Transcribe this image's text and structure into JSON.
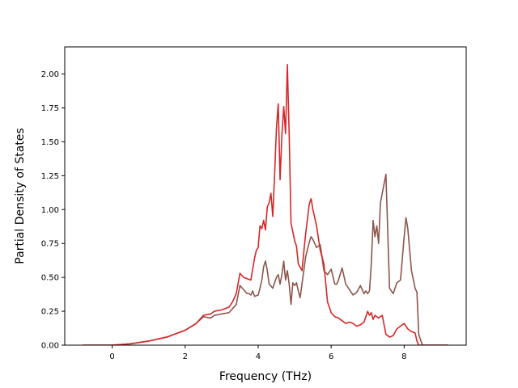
{
  "chart_data": {
    "type": "line",
    "title": "",
    "xlabel": "Frequency (THz)",
    "ylabel": "Partial Density of States",
    "xlim": [
      -1.3,
      9.7
    ],
    "ylim": [
      0,
      2.2
    ],
    "xticks": [
      0,
      2,
      4,
      6,
      8
    ],
    "xtick_labels": [
      "0",
      "2",
      "4",
      "6",
      "8"
    ],
    "yticks": [
      0,
      0.25,
      0.5,
      0.75,
      1.0,
      1.25,
      1.5,
      1.75,
      2.0
    ],
    "ytick_labels": [
      "0.00",
      "0.25",
      "0.50",
      "0.75",
      "1.00",
      "1.25",
      "1.50",
      "1.75",
      "2.00"
    ],
    "grid": false,
    "legend": "none",
    "series": [
      {
        "color": "#8c564b",
        "x": [
          -0.8,
          0.0,
          0.5,
          1.0,
          1.5,
          2.0,
          2.3,
          2.5,
          2.7,
          2.8,
          3.0,
          3.2,
          3.3,
          3.4,
          3.5,
          3.6,
          3.7,
          3.75,
          3.8,
          3.85,
          3.9,
          4.0,
          4.05,
          4.1,
          4.15,
          4.2,
          4.25,
          4.3,
          4.4,
          4.5,
          4.55,
          4.6,
          4.65,
          4.7,
          4.75,
          4.8,
          4.85,
          4.9,
          4.95,
          5.0,
          5.05,
          5.1,
          5.15,
          5.2,
          5.3,
          5.4,
          5.45,
          5.5,
          5.6,
          5.7,
          5.75,
          5.8,
          5.9,
          6.0,
          6.1,
          6.15,
          6.2,
          6.3,
          6.4,
          6.5,
          6.6,
          6.7,
          6.8,
          6.9,
          6.95,
          7.0,
          7.05,
          7.1,
          7.15,
          7.2,
          7.25,
          7.3,
          7.35,
          7.4,
          7.5,
          7.6,
          7.65,
          7.7,
          7.8,
          7.9,
          8.0,
          8.05,
          8.1,
          8.2,
          8.3,
          8.35,
          8.4,
          8.5,
          9.0,
          9.2
        ],
        "y": [
          0.0,
          0.0,
          0.01,
          0.03,
          0.06,
          0.11,
          0.16,
          0.21,
          0.2,
          0.22,
          0.23,
          0.24,
          0.27,
          0.3,
          0.44,
          0.41,
          0.38,
          0.38,
          0.37,
          0.4,
          0.36,
          0.37,
          0.42,
          0.48,
          0.58,
          0.62,
          0.55,
          0.45,
          0.42,
          0.5,
          0.52,
          0.45,
          0.52,
          0.62,
          0.48,
          0.55,
          0.45,
          0.3,
          0.46,
          0.44,
          0.46,
          0.4,
          0.35,
          0.45,
          0.65,
          0.76,
          0.8,
          0.78,
          0.72,
          0.74,
          0.65,
          0.55,
          0.52,
          0.56,
          0.45,
          0.45,
          0.48,
          0.57,
          0.45,
          0.41,
          0.37,
          0.39,
          0.44,
          0.38,
          0.4,
          0.38,
          0.4,
          0.6,
          0.92,
          0.8,
          0.88,
          0.75,
          1.05,
          1.12,
          1.26,
          0.42,
          0.4,
          0.38,
          0.46,
          0.48,
          0.8,
          0.94,
          0.86,
          0.55,
          0.42,
          0.39,
          0.08,
          0.0,
          0.0,
          0.0
        ]
      },
      {
        "color": "#d62728",
        "x": [
          -0.8,
          0.0,
          0.5,
          1.0,
          1.5,
          2.0,
          2.3,
          2.5,
          2.7,
          2.8,
          3.0,
          3.2,
          3.3,
          3.4,
          3.5,
          3.6,
          3.8,
          3.9,
          3.95,
          4.0,
          4.05,
          4.1,
          4.15,
          4.2,
          4.25,
          4.3,
          4.35,
          4.4,
          4.45,
          4.5,
          4.55,
          4.6,
          4.65,
          4.7,
          4.75,
          4.8,
          4.85,
          4.9,
          5.0,
          5.05,
          5.1,
          5.2,
          5.3,
          5.4,
          5.45,
          5.5,
          5.6,
          5.7,
          5.8,
          5.9,
          6.0,
          6.1,
          6.2,
          6.3,
          6.4,
          6.5,
          6.6,
          6.7,
          6.8,
          6.9,
          7.0,
          7.05,
          7.1,
          7.15,
          7.2,
          7.3,
          7.4,
          7.5,
          7.6,
          7.7,
          7.8,
          7.9,
          8.0,
          8.1,
          8.2,
          8.3,
          8.35,
          8.4,
          9.0,
          9.2
        ],
        "y": [
          0.0,
          0.0,
          0.01,
          0.03,
          0.06,
          0.11,
          0.16,
          0.22,
          0.23,
          0.25,
          0.26,
          0.28,
          0.32,
          0.38,
          0.53,
          0.5,
          0.48,
          0.64,
          0.7,
          0.72,
          0.88,
          0.86,
          0.92,
          0.85,
          1.02,
          1.05,
          1.12,
          0.95,
          1.25,
          1.6,
          1.78,
          1.22,
          1.55,
          1.76,
          1.56,
          2.07,
          1.55,
          0.9,
          0.77,
          0.73,
          0.6,
          0.55,
          0.82,
          1.04,
          1.08,
          1.0,
          0.88,
          0.7,
          0.6,
          0.32,
          0.24,
          0.21,
          0.2,
          0.18,
          0.16,
          0.17,
          0.16,
          0.14,
          0.15,
          0.17,
          0.25,
          0.22,
          0.24,
          0.19,
          0.22,
          0.2,
          0.22,
          0.08,
          0.06,
          0.07,
          0.12,
          0.14,
          0.16,
          0.12,
          0.1,
          0.09,
          0.03,
          0.0,
          0.0,
          0.0
        ]
      }
    ]
  }
}
